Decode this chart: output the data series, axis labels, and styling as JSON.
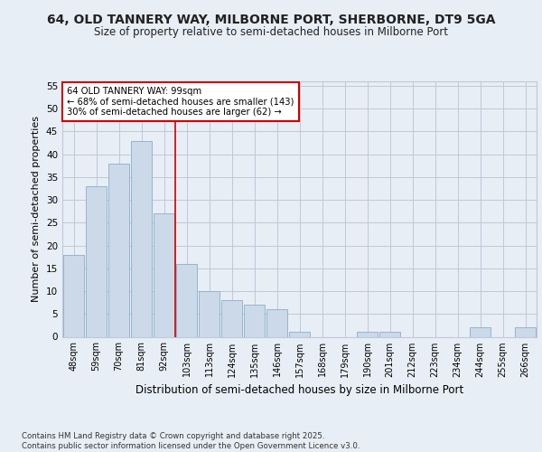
{
  "title1": "64, OLD TANNERY WAY, MILBORNE PORT, SHERBORNE, DT9 5GA",
  "title2": "Size of property relative to semi-detached houses in Milborne Port",
  "xlabel": "Distribution of semi-detached houses by size in Milborne Port",
  "ylabel": "Number of semi-detached properties",
  "categories": [
    "48sqm",
    "59sqm",
    "70sqm",
    "81sqm",
    "92sqm",
    "103sqm",
    "113sqm",
    "124sqm",
    "135sqm",
    "146sqm",
    "157sqm",
    "168sqm",
    "179sqm",
    "190sqm",
    "201sqm",
    "212sqm",
    "223sqm",
    "234sqm",
    "244sqm",
    "255sqm",
    "266sqm"
  ],
  "values": [
    18,
    33,
    38,
    43,
    27,
    16,
    10,
    8,
    7,
    6,
    1,
    0,
    0,
    1,
    1,
    0,
    0,
    0,
    2,
    0,
    2
  ],
  "bar_color": "#ccd9e8",
  "bar_edge_color": "#8aafc8",
  "grid_color": "#c0c8d8",
  "vline_x": 4.5,
  "vline_color": "#cc0000",
  "annotation_text": "64 OLD TANNERY WAY: 99sqm\n← 68% of semi-detached houses are smaller (143)\n30% of semi-detached houses are larger (62) →",
  "annotation_box_color": "#cc0000",
  "ylim": [
    0,
    56
  ],
  "yticks": [
    0,
    5,
    10,
    15,
    20,
    25,
    30,
    35,
    40,
    45,
    50,
    55
  ],
  "footer": "Contains HM Land Registry data © Crown copyright and database right 2025.\nContains public sector information licensed under the Open Government Licence v3.0.",
  "bg_color": "#e8eef5",
  "plot_bg_color": "#e8eef5"
}
